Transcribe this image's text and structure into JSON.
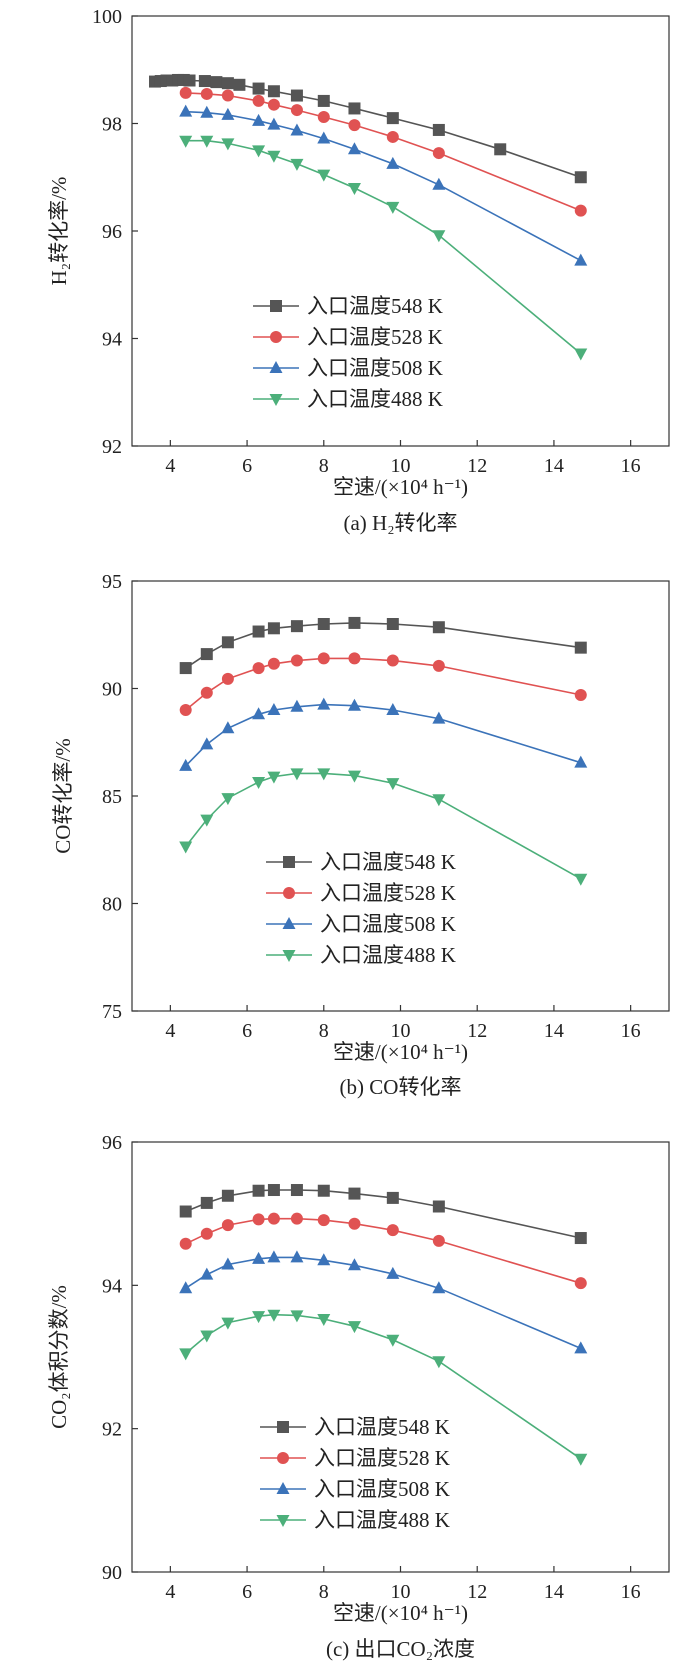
{
  "chart_data": [
    {
      "type": "line",
      "caption": "(a) H₂转化率",
      "ylabel": "H₂转化率/%",
      "xlabel": "空速/(×10⁴ h⁻¹)",
      "xlim": [
        3,
        17
      ],
      "ylim": [
        92,
        100
      ],
      "xticks": [
        4,
        6,
        8,
        10,
        12,
        14,
        16
      ],
      "yticks": [
        92,
        94,
        96,
        98,
        100
      ],
      "legend_position": "lower-left",
      "series": [
        {
          "name": "入口温度548 K",
          "color": "#555555",
          "marker": "square",
          "x": [
            3.6,
            3.75,
            3.9,
            4.05,
            4.2,
            4.35,
            4.5,
            4.9,
            5.2,
            5.5,
            5.8,
            6.3,
            6.7,
            7.3,
            8.0,
            8.8,
            9.8,
            11.0,
            12.6,
            14.7
          ],
          "y": [
            98.78,
            98.79,
            98.8,
            98.8,
            98.81,
            98.81,
            98.8,
            98.79,
            98.77,
            98.75,
            98.72,
            98.65,
            98.6,
            98.52,
            98.42,
            98.28,
            98.1,
            97.88,
            97.52,
            97.0
          ]
        },
        {
          "name": "入口温度528 K",
          "color": "#e05252",
          "marker": "circle",
          "x": [
            4.4,
            4.95,
            5.5,
            6.3,
            6.7,
            7.3,
            8.0,
            8.8,
            9.8,
            11.0,
            14.7
          ],
          "y": [
            98.57,
            98.55,
            98.52,
            98.42,
            98.35,
            98.25,
            98.12,
            97.97,
            97.75,
            97.45,
            96.38
          ]
        },
        {
          "name": "入口温度508 K",
          "color": "#3b73b9",
          "marker": "triangle-up",
          "x": [
            4.4,
            4.95,
            5.5,
            6.3,
            6.7,
            7.3,
            8.0,
            8.8,
            9.8,
            11.0,
            14.7
          ],
          "y": [
            98.22,
            98.2,
            98.16,
            98.05,
            97.98,
            97.87,
            97.72,
            97.52,
            97.25,
            96.86,
            95.45
          ]
        },
        {
          "name": "入口温度488 K",
          "color": "#4caf7a",
          "marker": "triangle-down",
          "x": [
            4.4,
            4.95,
            5.5,
            6.3,
            6.7,
            7.3,
            8.0,
            8.8,
            9.8,
            11.0,
            14.7
          ],
          "y": [
            97.68,
            97.68,
            97.63,
            97.5,
            97.4,
            97.25,
            97.05,
            96.8,
            96.45,
            95.92,
            93.72
          ]
        }
      ]
    },
    {
      "type": "line",
      "caption": "(b) CO转化率",
      "ylabel": "CO转化率/%",
      "xlabel": "空速/(×10⁴ h⁻¹)",
      "xlim": [
        3,
        17
      ],
      "ylim": [
        75,
        95
      ],
      "xticks": [
        4,
        6,
        8,
        10,
        12,
        14,
        16
      ],
      "yticks": [
        75,
        80,
        85,
        90,
        95
      ],
      "legend_position": "lower-center",
      "series": [
        {
          "name": "入口温度548 K",
          "color": "#555555",
          "marker": "square",
          "x": [
            4.4,
            4.95,
            5.5,
            6.3,
            6.7,
            7.3,
            8.0,
            8.8,
            9.8,
            11.0,
            14.7
          ],
          "y": [
            90.95,
            91.6,
            92.15,
            92.65,
            92.8,
            92.9,
            93.0,
            93.05,
            93.0,
            92.85,
            91.9
          ]
        },
        {
          "name": "入口温度528 K",
          "color": "#e05252",
          "marker": "circle",
          "x": [
            4.4,
            4.95,
            5.5,
            6.3,
            6.7,
            7.3,
            8.0,
            8.8,
            9.8,
            11.0,
            14.7
          ],
          "y": [
            89.0,
            89.8,
            90.45,
            90.95,
            91.15,
            91.3,
            91.4,
            91.4,
            91.3,
            91.05,
            89.7
          ]
        },
        {
          "name": "入口温度508 K",
          "color": "#3b73b9",
          "marker": "triangle-up",
          "x": [
            4.4,
            4.95,
            5.5,
            6.3,
            6.7,
            7.3,
            8.0,
            8.8,
            9.8,
            11.0,
            14.7
          ],
          "y": [
            86.4,
            87.4,
            88.15,
            88.8,
            89.0,
            89.15,
            89.25,
            89.2,
            89.0,
            88.6,
            86.55
          ]
        },
        {
          "name": "入口温度488 K",
          "color": "#4caf7a",
          "marker": "triangle-down",
          "x": [
            4.4,
            4.95,
            5.5,
            6.3,
            6.7,
            7.3,
            8.0,
            8.8,
            9.8,
            11.0,
            14.7
          ],
          "y": [
            82.65,
            83.9,
            84.9,
            85.65,
            85.9,
            86.05,
            86.05,
            85.95,
            85.6,
            84.85,
            81.15
          ]
        }
      ]
    },
    {
      "type": "line",
      "caption": "(c) 出口CO₂浓度",
      "ylabel": "CO₂体积分数/%",
      "xlabel": "空速/(×10⁴ h⁻¹)",
      "xlim": [
        3,
        17
      ],
      "ylim": [
        90,
        96
      ],
      "xticks": [
        4,
        6,
        8,
        10,
        12,
        14,
        16
      ],
      "yticks": [
        90,
        92,
        94,
        96
      ],
      "legend_position": "lower-center",
      "series": [
        {
          "name": "入口温度548 K",
          "color": "#555555",
          "marker": "square",
          "x": [
            4.4,
            4.95,
            5.5,
            6.3,
            6.7,
            7.3,
            8.0,
            8.8,
            9.8,
            11.0,
            14.7
          ],
          "y": [
            95.03,
            95.15,
            95.25,
            95.32,
            95.33,
            95.33,
            95.32,
            95.28,
            95.22,
            95.1,
            94.66
          ]
        },
        {
          "name": "入口温度528 K",
          "color": "#e05252",
          "marker": "circle",
          "x": [
            4.4,
            4.95,
            5.5,
            6.3,
            6.7,
            7.3,
            8.0,
            8.8,
            9.8,
            11.0,
            14.7
          ],
          "y": [
            94.58,
            94.72,
            94.84,
            94.92,
            94.93,
            94.93,
            94.91,
            94.86,
            94.77,
            94.62,
            94.03
          ]
        },
        {
          "name": "入口温度508 K",
          "color": "#3b73b9",
          "marker": "triangle-up",
          "x": [
            4.4,
            4.95,
            5.5,
            6.3,
            6.7,
            7.3,
            8.0,
            8.8,
            9.8,
            11.0,
            14.7
          ],
          "y": [
            93.96,
            94.15,
            94.29,
            94.37,
            94.39,
            94.39,
            94.35,
            94.28,
            94.16,
            93.96,
            93.12
          ]
        },
        {
          "name": "入口温度488 K",
          "color": "#4caf7a",
          "marker": "triangle-down",
          "x": [
            4.4,
            4.95,
            5.5,
            6.3,
            6.7,
            7.3,
            8.0,
            8.8,
            9.8,
            11.0,
            14.7
          ],
          "y": [
            93.05,
            93.3,
            93.48,
            93.57,
            93.59,
            93.58,
            93.53,
            93.43,
            93.24,
            92.94,
            91.58
          ]
        }
      ]
    }
  ]
}
